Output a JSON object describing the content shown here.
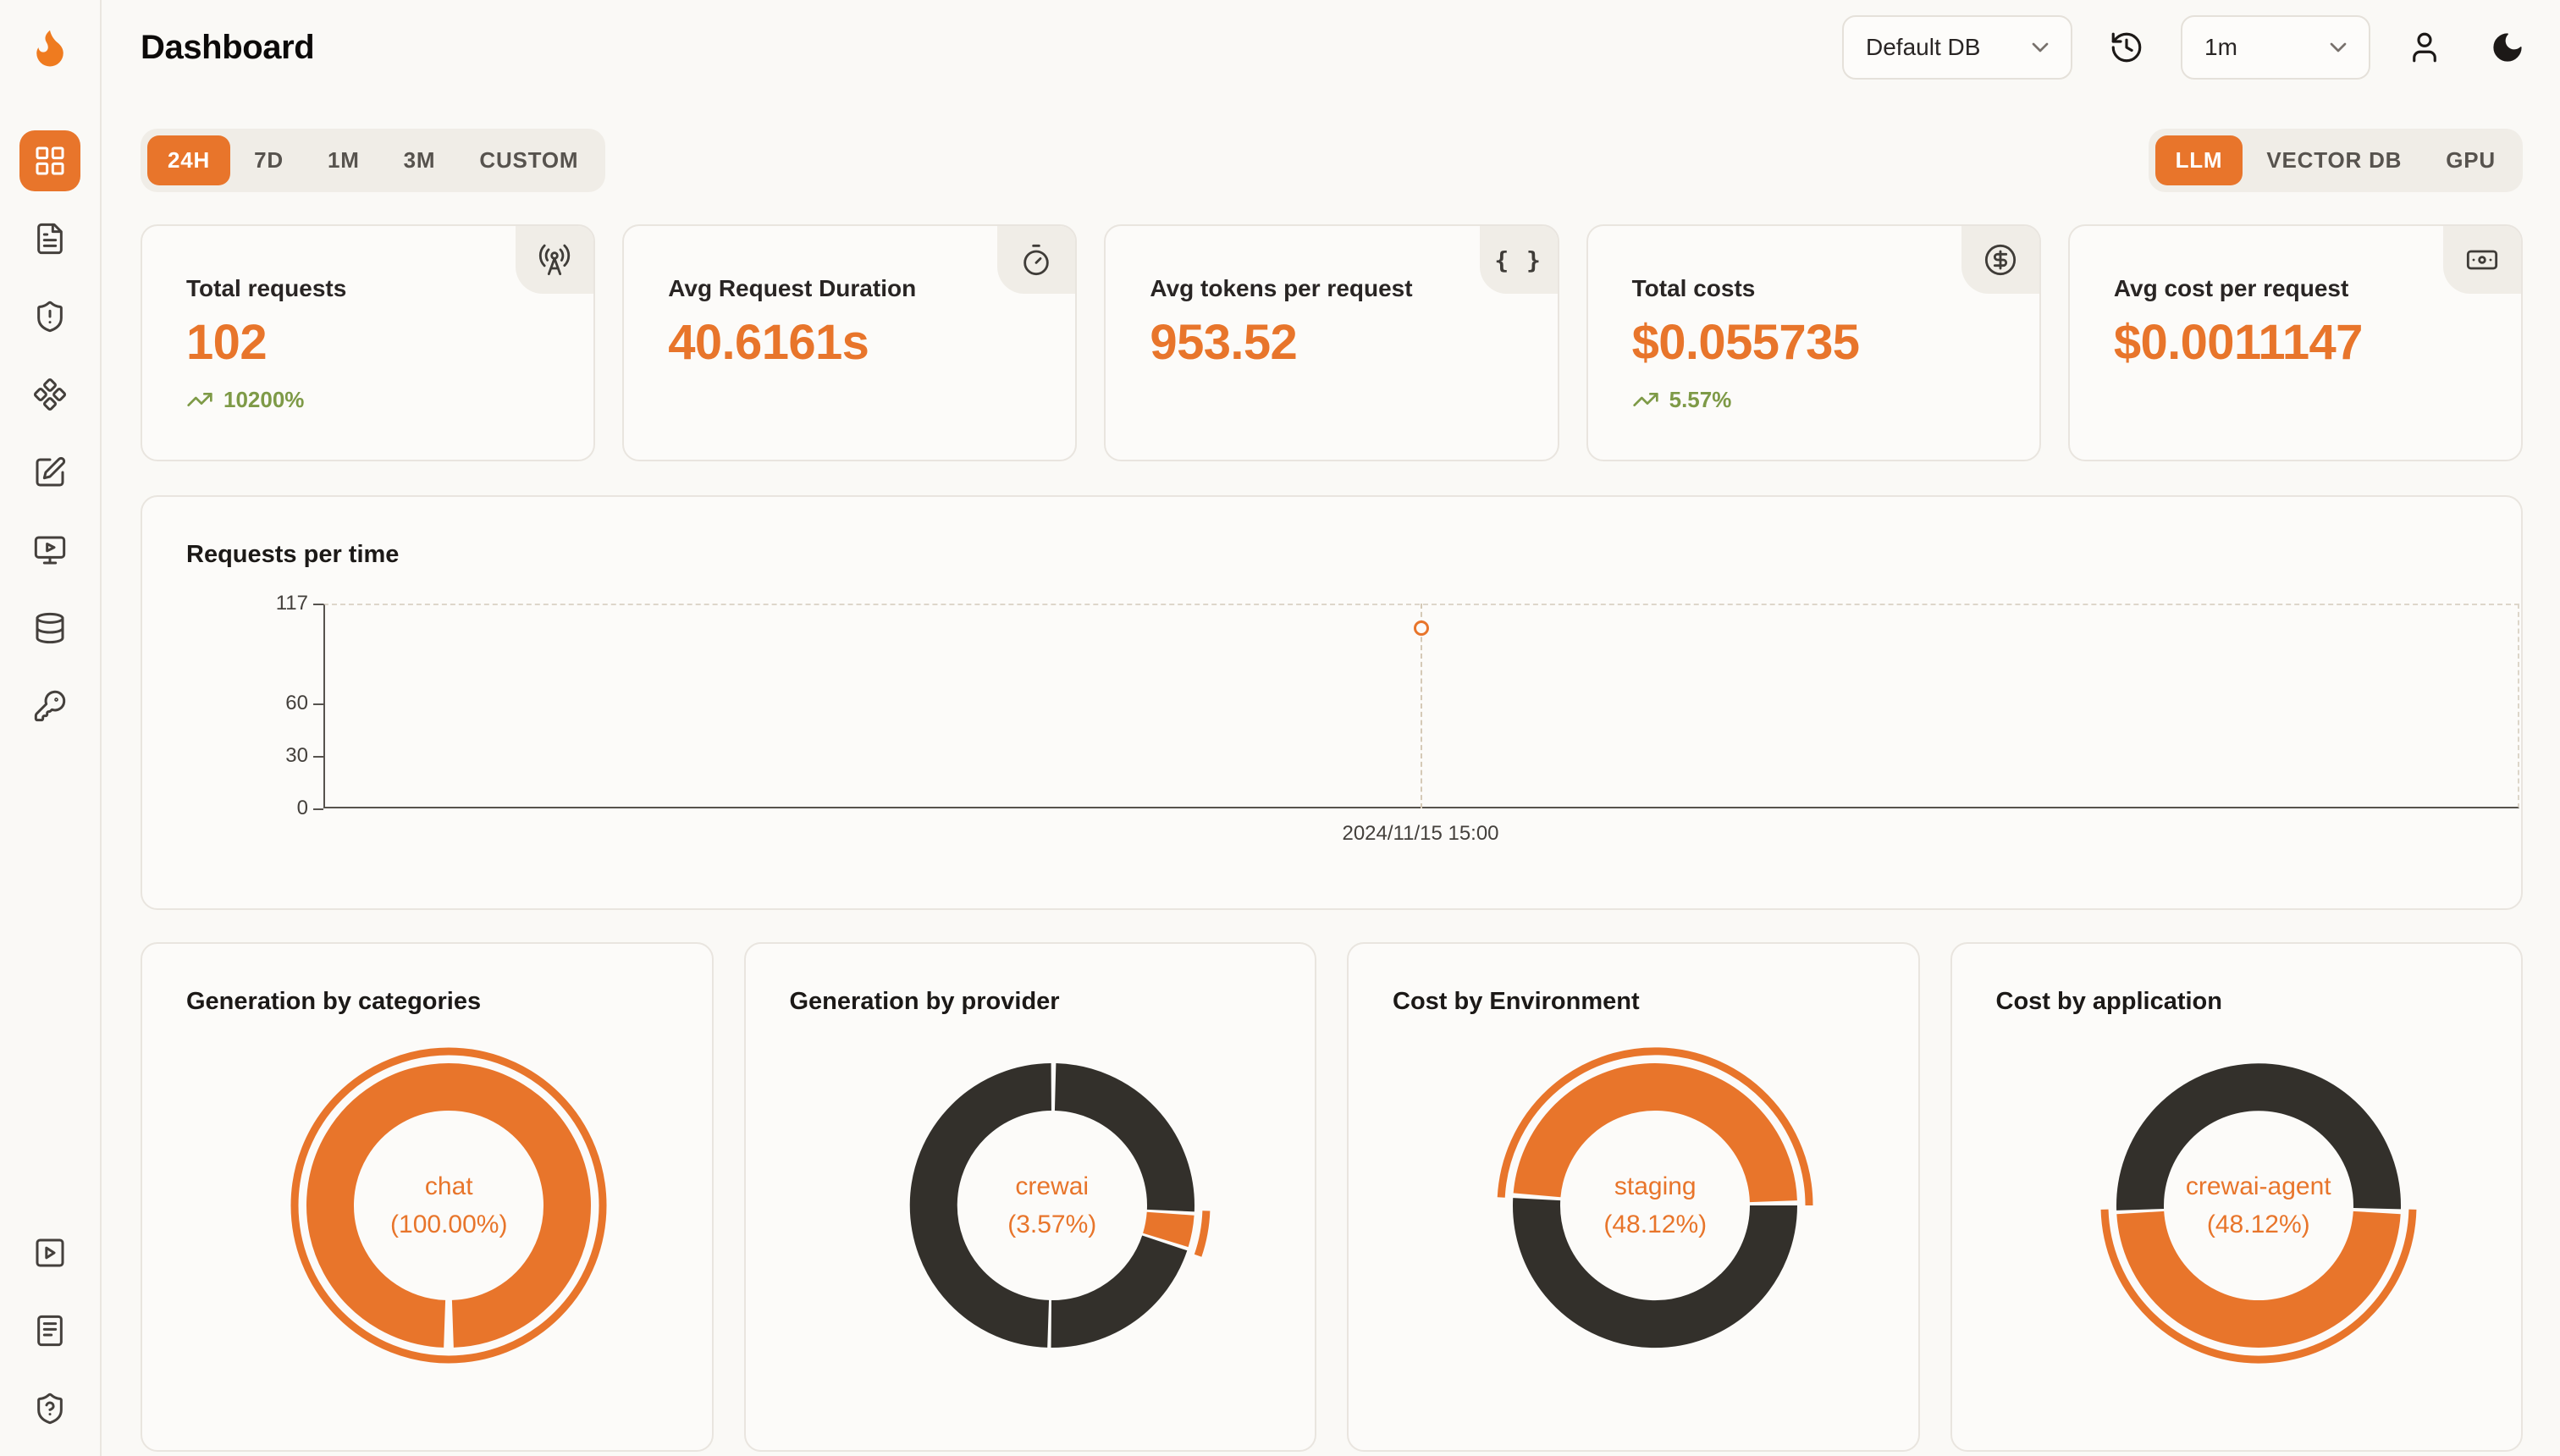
{
  "colors": {
    "accent": "#E8752B",
    "dark": "#33302B",
    "positive": "#7E9A47"
  },
  "app": {
    "page_title": "Dashboard"
  },
  "header": {
    "db_selector": {
      "value": "Default DB"
    },
    "refresh_interval_selector": {
      "value": "1m"
    }
  },
  "sidebar": {
    "items": [
      "dashboard-grid",
      "file-text",
      "shield-alert",
      "diamonds",
      "edit-square",
      "monitor-play",
      "database",
      "key"
    ],
    "footer_items": [
      "play-square",
      "document-lines",
      "shield-question"
    ]
  },
  "filters": {
    "time_ranges": [
      "24H",
      "7D",
      "1M",
      "3M",
      "CUSTOM"
    ],
    "active_time_range": "24H",
    "sources": [
      "LLM",
      "VECTOR DB",
      "GPU"
    ],
    "active_source": "LLM"
  },
  "stats": [
    {
      "title": "Total requests",
      "value": "102",
      "delta": "10200%",
      "icon": "radio-tower-icon"
    },
    {
      "title": "Avg Request Duration",
      "value": "40.6161s",
      "icon": "timer-icon"
    },
    {
      "title": "Avg tokens per request",
      "value": "953.52",
      "icon": "braces-icon"
    },
    {
      "title": "Total costs",
      "value": "$0.055735",
      "delta": "5.57%",
      "icon": "circle-dollar-icon"
    },
    {
      "title": "Avg cost per request",
      "value": "$0.0011147",
      "icon": "banknote-icon"
    }
  ],
  "chart_data": [
    {
      "type": "line",
      "title": "Requests per time",
      "x": [
        "2024/11/15 15:00"
      ],
      "values": [
        102
      ],
      "ylim": [
        0,
        117
      ],
      "yticks": [
        "117",
        "60",
        "30",
        "0"
      ],
      "legend": false,
      "grid": "dashed frame top/right, solid axes left/bottom, single point marker with dashed axis pointer"
    },
    {
      "type": "pie",
      "title": "Generation by categories",
      "center_label": {
        "line1": "chat",
        "line2": "(100.00%)"
      },
      "segments": [
        {
          "label": "chat",
          "value": 100.0,
          "color": "accent",
          "start": 182,
          "end": 538
        }
      ],
      "outer_arc": "full"
    },
    {
      "type": "pie",
      "title": "Generation by provider",
      "center_label": {
        "line1": "crewai",
        "line2": "(3.57%)"
      },
      "segments": [
        {
          "color": "dark",
          "start": 1.5,
          "end": 92.5
        },
        {
          "label": "crewai",
          "value": 3.57,
          "color": "accent",
          "start": 94,
          "end": 107
        },
        {
          "color": "dark",
          "start": 108.5,
          "end": 180.5
        },
        {
          "color": "dark",
          "start": 182,
          "end": 359.5
        }
      ],
      "outer_arc": {
        "start": 92,
        "end": 109
      }
    },
    {
      "type": "pie",
      "title": "Cost by Environment",
      "center_label": {
        "line1": "staging",
        "line2": "(48.12%)"
      },
      "segments": [
        {
          "label": "staging",
          "value": 48.12,
          "color": "accent",
          "start": 275,
          "end": 448
        },
        {
          "color": "dark",
          "start": 90,
          "end": 273
        }
      ],
      "outer_arc": {
        "start": 273,
        "end": 450
      }
    },
    {
      "type": "pie",
      "title": "Cost by application",
      "center_label": {
        "line1": "crewai-agent",
        "line2": "(48.12%)"
      },
      "segments": [
        {
          "label": "crewai-agent",
          "value": 48.12,
          "color": "accent",
          "start": 93.5,
          "end": 266.5
        },
        {
          "color": "dark",
          "start": 268,
          "end": 451.5
        }
      ],
      "outer_arc": {
        "start": 91.5,
        "end": 268.5
      }
    }
  ]
}
